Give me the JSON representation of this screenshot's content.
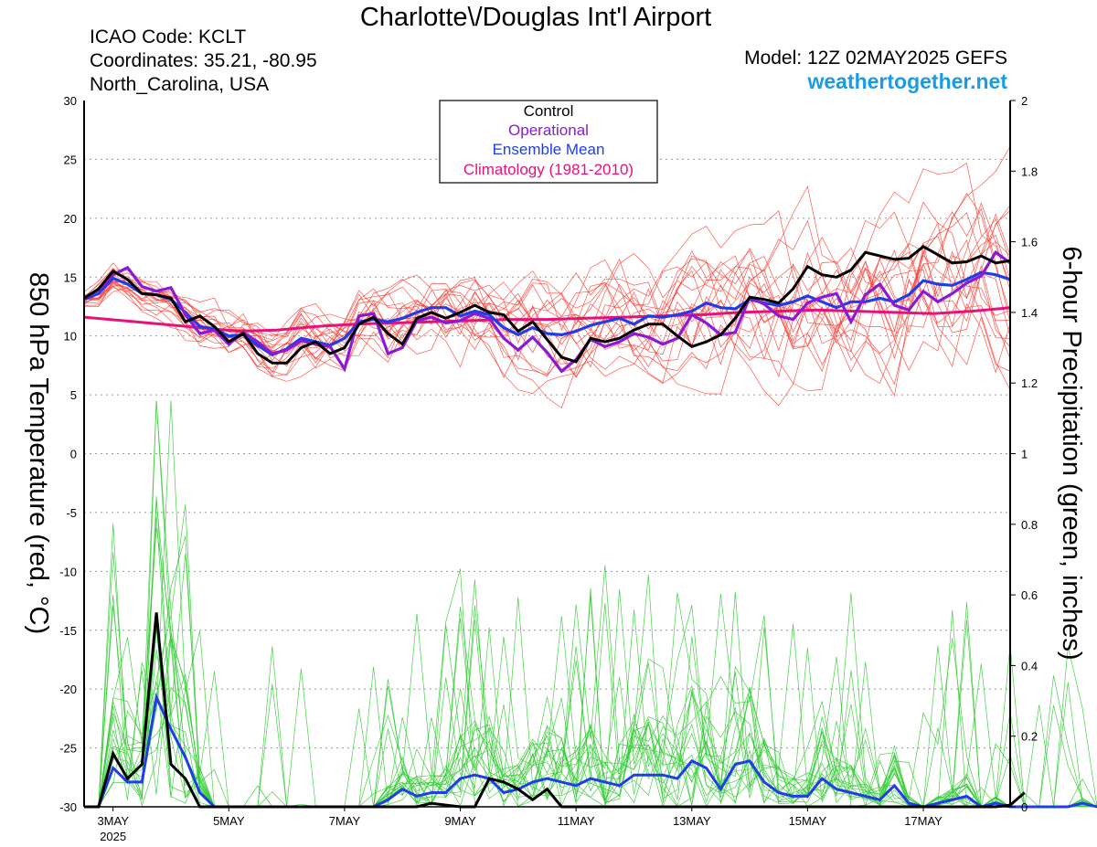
{
  "header": {
    "title": "Charlotte\\/Douglas Int'l Airport",
    "icao": "ICAO Code: KCLT",
    "coords": "Coordinates: 35.21, -80.95",
    "region": "North_Carolina, USA",
    "model": "Model: 12Z 02MAY2025 GEFS",
    "site": "weathertogether.net"
  },
  "colors": {
    "members_temp": "#ff3b30",
    "members_precip": "#33cc33",
    "control": "#000000",
    "operational": "#8a1ad6",
    "ensemble_mean": "#1f3ee8",
    "climatology": "#e6127a",
    "site": "#1a9be6"
  },
  "chart_data": {
    "type": "line",
    "ylabel": "850 hPa Temperature (red, °C)",
    "y2label": "6-hour Precipitation (green, inches)",
    "ylim": [
      -30,
      30
    ],
    "y2lim": [
      0,
      2
    ],
    "y_ticks": [
      "30",
      "25",
      "20",
      "15",
      "10",
      "5",
      "0",
      "-5",
      "-10",
      "-15",
      "-20",
      "-25",
      "-30"
    ],
    "y2_ticks": [
      "2",
      "1.8",
      "1.6",
      "1.4",
      "1.2",
      "1",
      "0.8",
      "0.6",
      "0.4",
      "0.2",
      "0"
    ],
    "x_ticks": [
      "3MAY",
      "5MAY",
      "7MAY",
      "9MAY",
      "11MAY",
      "13MAY",
      "15MAY",
      "17MAY"
    ],
    "x_year": "2025",
    "grid": true,
    "legend": {
      "position": "top-center",
      "entries": [
        "Control",
        "Operational",
        "Ensemble Mean",
        "Climatology (1981-2010)"
      ]
    },
    "x_start_day": 2.5,
    "x_end_day": 18.5,
    "x_step_days": 0.25,
    "temperature": {
      "control": [
        13.2,
        14,
        15.5,
        14.8,
        13.6,
        13.5,
        13.2,
        11.2,
        11.7,
        10.8,
        9.5,
        10.2,
        8.5,
        7.7,
        7.7,
        9,
        9.5,
        8.5,
        9,
        11,
        11.6,
        10.2,
        9.3,
        11.5,
        12,
        11.5,
        12,
        12.6,
        12,
        11.8,
        10.4,
        11.2,
        9.7,
        8.2,
        7.8,
        9.8,
        9.5,
        9.8,
        10.5,
        11,
        11,
        10,
        9.1,
        9.5,
        10.1,
        11.5,
        13.3,
        13.1,
        12.8,
        14,
        15.9,
        15.2,
        15,
        15.6,
        17.1,
        16.8,
        16.5,
        16.6,
        17.6,
        16.9,
        16.2,
        16.3,
        16.8,
        16.2,
        16.4
      ],
      "operational": [
        13.2,
        13.9,
        15.2,
        15.8,
        14.2,
        13.8,
        14.1,
        11.8,
        10.2,
        10.5,
        9.3,
        10.3,
        9.5,
        8.5,
        8.8,
        9.6,
        9.3,
        9.1,
        7.2,
        11.7,
        11.9,
        8.5,
        9,
        11.3,
        11.6,
        11.1,
        11.3,
        11.9,
        11.5,
        9.8,
        8.8,
        9.9,
        8.6,
        7,
        8,
        9.7,
        9.1,
        9.5,
        10.2,
        9.9,
        9.3,
        9.8,
        11.8,
        11.1,
        10.1,
        10.3,
        13.3,
        12.7,
        11.7,
        11.4,
        12.8,
        13.3,
        13.6,
        11.2,
        13.5,
        14.4,
        12.6,
        12.2,
        13.8,
        12.9,
        13.6,
        14.5,
        15.1,
        17.1,
        16.2
      ],
      "mean": [
        13.1,
        13.6,
        14.9,
        14.4,
        13.6,
        13.5,
        13.1,
        12,
        10.8,
        10.6,
        10,
        10.1,
        9.2,
        8.4,
        8.9,
        9.8,
        9.5,
        9.2,
        9.8,
        11.2,
        11.4,
        11.2,
        11.5,
        12,
        12.4,
        12.4,
        11.7,
        12.1,
        11.8,
        10.7,
        10.1,
        10.7,
        10.2,
        10.1,
        10.4,
        10.9,
        11.2,
        11.5,
        11,
        11.7,
        11.6,
        11.8,
        12.1,
        12.8,
        12.4,
        12.3,
        13.1,
        12.8,
        12.6,
        12.9,
        13.4,
        12.9,
        12.4,
        12.9,
        12.9,
        13.2,
        12.9,
        13.5,
        14.7,
        14.4,
        14.3,
        14.8,
        15.4,
        15.2,
        14.8
      ],
      "climatology": [
        11.6,
        11.3,
        11,
        10.7,
        10.4,
        10.5,
        10.8,
        11,
        11.1,
        11.2,
        11.3,
        11.4,
        11.4,
        11.5,
        11.6,
        11.7,
        11.8,
        12,
        12.1,
        12.2,
        12.1,
        12,
        11.9,
        12.1,
        12.4
      ]
    },
    "precipitation": {
      "control": [
        0,
        0,
        0.15,
        0.08,
        0.12,
        0.55,
        0.12,
        0.08,
        0,
        0,
        0,
        0,
        0,
        0,
        0,
        0,
        0,
        0,
        0,
        0,
        0,
        0,
        0,
        0,
        0.01,
        0.005,
        0,
        0,
        0.08,
        0.07,
        0.05,
        0.02,
        0.05,
        0,
        0,
        0,
        0,
        0,
        0,
        0,
        0,
        0,
        0,
        0,
        0,
        0,
        0,
        0,
        0,
        0,
        0,
        0,
        0,
        0,
        0,
        0,
        0,
        0,
        0,
        0,
        0,
        0,
        0,
        0,
        0.005,
        0.04
      ],
      "mean": [
        0,
        0,
        0.11,
        0.07,
        0.07,
        0.31,
        0.22,
        0.14,
        0.04,
        0,
        0,
        0,
        0,
        0,
        0,
        0,
        0,
        0,
        0,
        0,
        0,
        0.02,
        0.05,
        0.03,
        0.04,
        0.04,
        0.08,
        0.09,
        0.08,
        0.04,
        0.05,
        0.07,
        0.08,
        0.07,
        0.06,
        0.08,
        0.07,
        0.06,
        0.09,
        0.09,
        0.09,
        0.08,
        0.13,
        0.11,
        0.05,
        0.12,
        0.13,
        0.07,
        0.04,
        0.03,
        0.03,
        0.08,
        0.05,
        0.04,
        0.03,
        0.02,
        0.06,
        0.01,
        0,
        0.01,
        0.02,
        0.03,
        0,
        0.01,
        0,
        0,
        0,
        0,
        0,
        0.01,
        0,
        0.01,
        0,
        0.01,
        0.01
      ]
    }
  }
}
